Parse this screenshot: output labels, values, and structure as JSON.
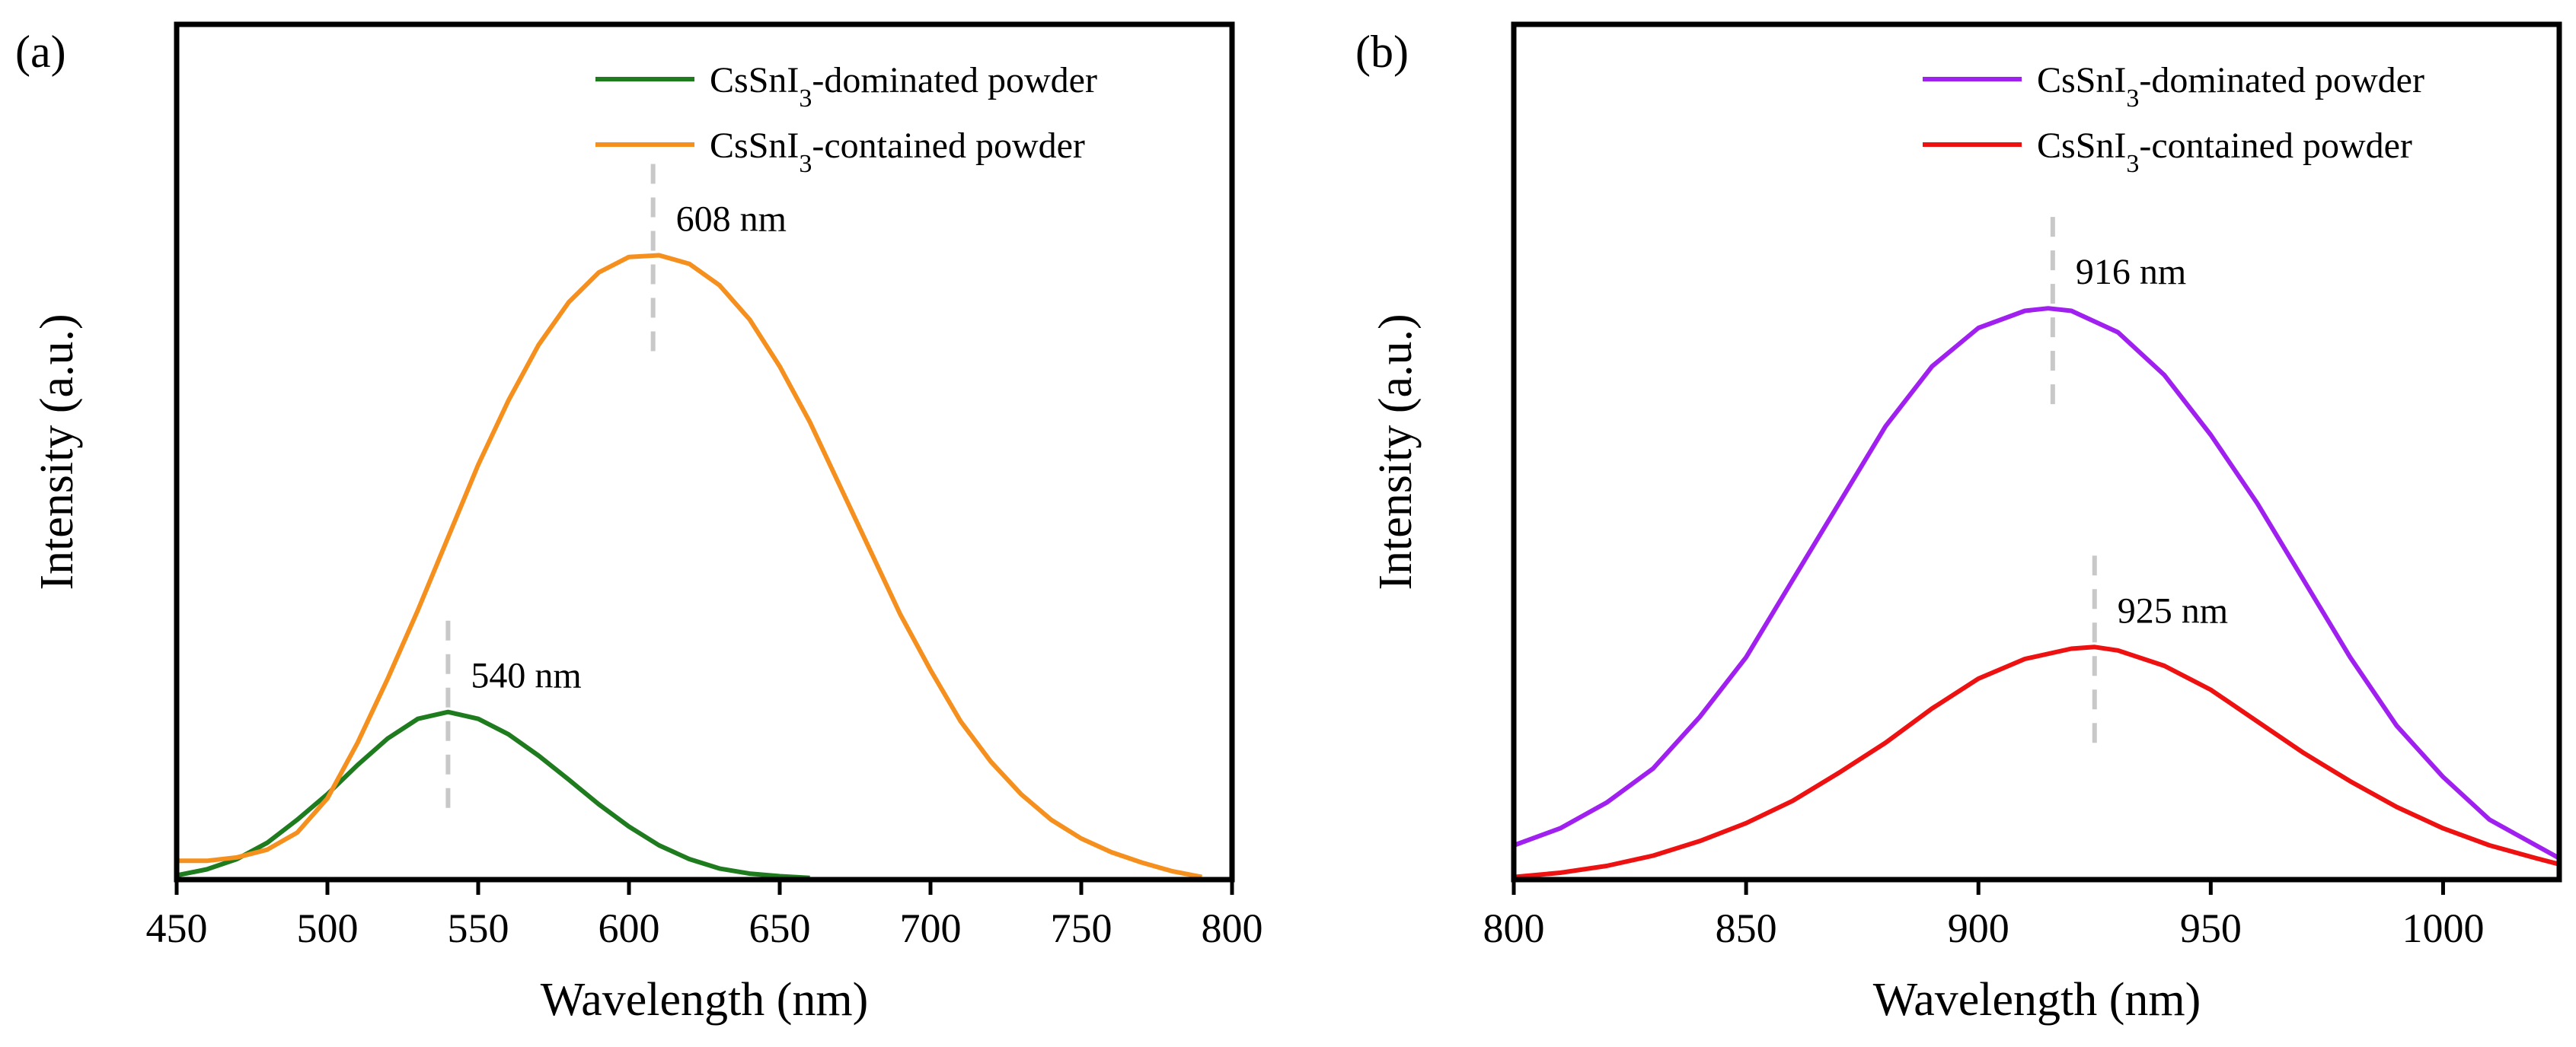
{
  "chart_data": [
    {
      "panel": "(a)",
      "type": "line",
      "xlabel": "Wavelength (nm)",
      "ylabel": "Intensity (a.u.)",
      "xlim": [
        450,
        800
      ],
      "ylim": [
        0,
        1.0
      ],
      "x_ticks": [
        "450",
        "500",
        "550",
        "600",
        "650",
        "700",
        "750",
        "800"
      ],
      "y_ticks_shown": false,
      "legend_position": "top-right",
      "series": [
        {
          "name": "CsSnI3-dominated powder",
          "legend_base": "CsSnI",
          "legend_sub": "3",
          "legend_rest": "-dominated powder",
          "color": "#1e7b1e",
          "points": [
            [
              450,
              0.005
            ],
            [
              460,
              0.012
            ],
            [
              470,
              0.024
            ],
            [
              480,
              0.043
            ],
            [
              490,
              0.07
            ],
            [
              500,
              0.1
            ],
            [
              510,
              0.134
            ],
            [
              520,
              0.165
            ],
            [
              530,
              0.188
            ],
            [
              540,
              0.196
            ],
            [
              550,
              0.188
            ],
            [
              560,
              0.17
            ],
            [
              570,
              0.145
            ],
            [
              580,
              0.117
            ],
            [
              590,
              0.088
            ],
            [
              600,
              0.062
            ],
            [
              610,
              0.04
            ],
            [
              620,
              0.024
            ],
            [
              630,
              0.013
            ],
            [
              640,
              0.007
            ],
            [
              650,
              0.004
            ],
            [
              660,
              0.002
            ]
          ],
          "peak": {
            "x": 540,
            "y": 0.196,
            "label": "540 nm"
          }
        },
        {
          "name": "CsSnI3-contained powder",
          "legend_base": "CsSnI",
          "legend_sub": "3",
          "legend_rest": "-contained powder",
          "color": "#f5901e",
          "points": [
            [
              450,
              0.022
            ],
            [
              460,
              0.022
            ],
            [
              470,
              0.026
            ],
            [
              480,
              0.035
            ],
            [
              490,
              0.055
            ],
            [
              500,
              0.095
            ],
            [
              510,
              0.16
            ],
            [
              520,
              0.235
            ],
            [
              530,
              0.315
            ],
            [
              540,
              0.4
            ],
            [
              550,
              0.485
            ],
            [
              560,
              0.56
            ],
            [
              570,
              0.625
            ],
            [
              580,
              0.675
            ],
            [
              590,
              0.71
            ],
            [
              600,
              0.728
            ],
            [
              610,
              0.73
            ],
            [
              620,
              0.72
            ],
            [
              630,
              0.695
            ],
            [
              640,
              0.655
            ],
            [
              650,
              0.6
            ],
            [
              660,
              0.535
            ],
            [
              670,
              0.46
            ],
            [
              680,
              0.385
            ],
            [
              690,
              0.31
            ],
            [
              700,
              0.245
            ],
            [
              710,
              0.185
            ],
            [
              720,
              0.138
            ],
            [
              730,
              0.1
            ],
            [
              740,
              0.07
            ],
            [
              750,
              0.048
            ],
            [
              760,
              0.032
            ],
            [
              770,
              0.02
            ],
            [
              780,
              0.01
            ],
            [
              790,
              0.003
            ]
          ],
          "peak": {
            "x": 608,
            "y": 0.73,
            "label": "608 nm"
          }
        }
      ]
    },
    {
      "panel": "(b)",
      "type": "line",
      "xlabel": "Wavelength (nm)",
      "ylabel": "Intensity (a.u.)",
      "xlim": [
        800,
        1025
      ],
      "ylim": [
        0,
        1.0
      ],
      "x_ticks": [
        "800",
        "850",
        "900",
        "950",
        "1000"
      ],
      "y_ticks_shown": false,
      "legend_position": "top-right",
      "series": [
        {
          "name": "CsSnI3-dominated powder",
          "legend_base": "CsSnI",
          "legend_sub": "3",
          "legend_rest": "-dominated powder",
          "color": "#a020f0",
          "points": [
            [
              800,
              0.04
            ],
            [
              810,
              0.06
            ],
            [
              820,
              0.09
            ],
            [
              830,
              0.13
            ],
            [
              840,
              0.19
            ],
            [
              850,
              0.26
            ],
            [
              860,
              0.35
            ],
            [
              870,
              0.44
            ],
            [
              880,
              0.53
            ],
            [
              890,
              0.6
            ],
            [
              900,
              0.645
            ],
            [
              910,
              0.665
            ],
            [
              915,
              0.668
            ],
            [
              920,
              0.665
            ],
            [
              930,
              0.64
            ],
            [
              940,
              0.59
            ],
            [
              950,
              0.52
            ],
            [
              960,
              0.44
            ],
            [
              970,
              0.35
            ],
            [
              980,
              0.26
            ],
            [
              990,
              0.18
            ],
            [
              1000,
              0.12
            ],
            [
              1010,
              0.07
            ],
            [
              1020,
              0.04
            ],
            [
              1025,
              0.025
            ]
          ],
          "peak": {
            "x": 916,
            "y": 0.668,
            "label": "916 nm"
          }
        },
        {
          "name": "CsSnI3-contained powder",
          "legend_base": "CsSnI",
          "legend_sub": "3",
          "legend_rest": "-contained powder",
          "color": "#ee1111",
          "points": [
            [
              800,
              0.003
            ],
            [
              810,
              0.008
            ],
            [
              820,
              0.016
            ],
            [
              830,
              0.028
            ],
            [
              840,
              0.045
            ],
            [
              850,
              0.066
            ],
            [
              860,
              0.092
            ],
            [
              870,
              0.125
            ],
            [
              880,
              0.16
            ],
            [
              890,
              0.2
            ],
            [
              900,
              0.235
            ],
            [
              910,
              0.258
            ],
            [
              920,
              0.27
            ],
            [
              925,
              0.272
            ],
            [
              930,
              0.268
            ],
            [
              940,
              0.25
            ],
            [
              950,
              0.222
            ],
            [
              960,
              0.185
            ],
            [
              970,
              0.148
            ],
            [
              980,
              0.115
            ],
            [
              990,
              0.085
            ],
            [
              1000,
              0.06
            ],
            [
              1010,
              0.04
            ],
            [
              1020,
              0.025
            ],
            [
              1025,
              0.018
            ]
          ],
          "peak": {
            "x": 925,
            "y": 0.272,
            "label": "925 nm"
          }
        }
      ]
    }
  ]
}
